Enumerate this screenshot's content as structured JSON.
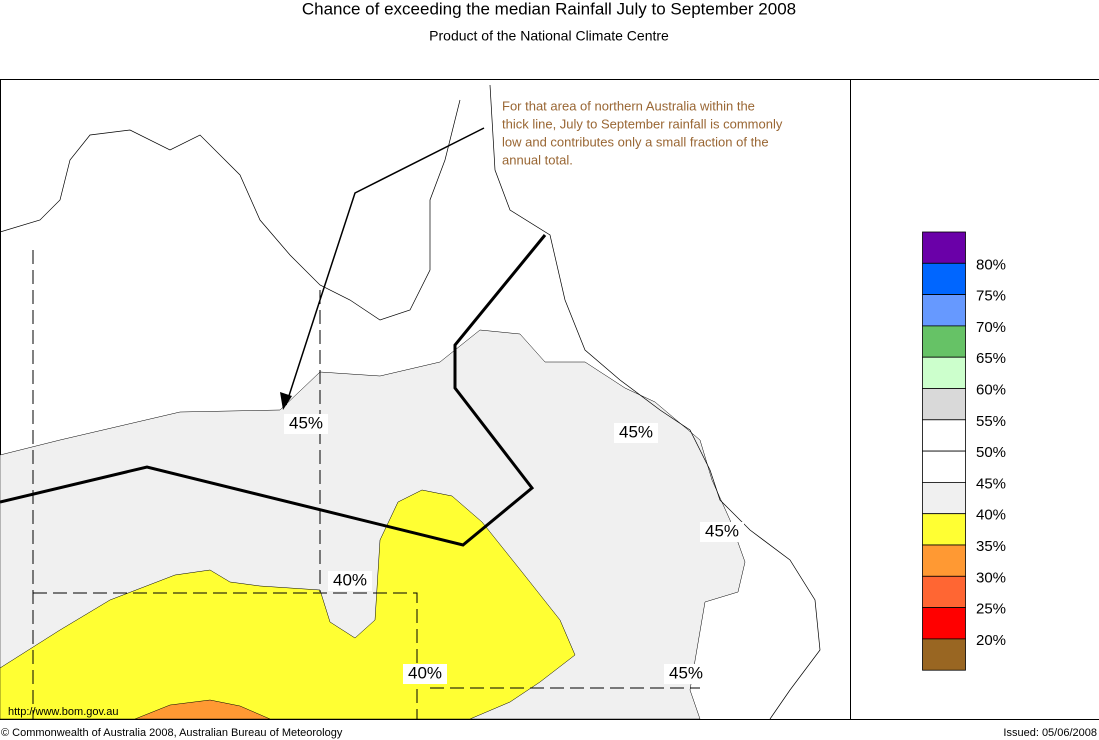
{
  "header": {
    "title": "Chance of exceeding the median Rainfall July to September 2008",
    "subtitle": "Product of the National Climate Centre"
  },
  "map": {
    "note": [
      "For that area of northern Australia within the",
      "thick line, July to September rainfall is commonly",
      "low and contributes only a small fraction of the",
      "annual total."
    ],
    "contour_labels": [
      "45%",
      "45%",
      "45%",
      "45%",
      "40%",
      "40%"
    ]
  },
  "legend": {
    "colors": [
      "#6a00a8",
      "#0066ff",
      "#6699ff",
      "#66c266",
      "#ccffcc",
      "#d9d9d9",
      "#ffffff",
      "#ffffff",
      "#f0f0f0",
      "#ffff33",
      "#ff9933",
      "#ff6633",
      "#ff0000",
      "#996622"
    ],
    "labels": [
      "80%",
      "75%",
      "70%",
      "65%",
      "60%",
      "55%",
      "50%",
      "45%",
      "40%",
      "35%",
      "30%",
      "25%",
      "20%"
    ]
  },
  "footer": {
    "url": "http://www.bom.gov.au",
    "copyright": "© Commonwealth of Australia 2008, Australian Bureau of Meteorology",
    "issued": "Issued: 05/06/2008"
  }
}
